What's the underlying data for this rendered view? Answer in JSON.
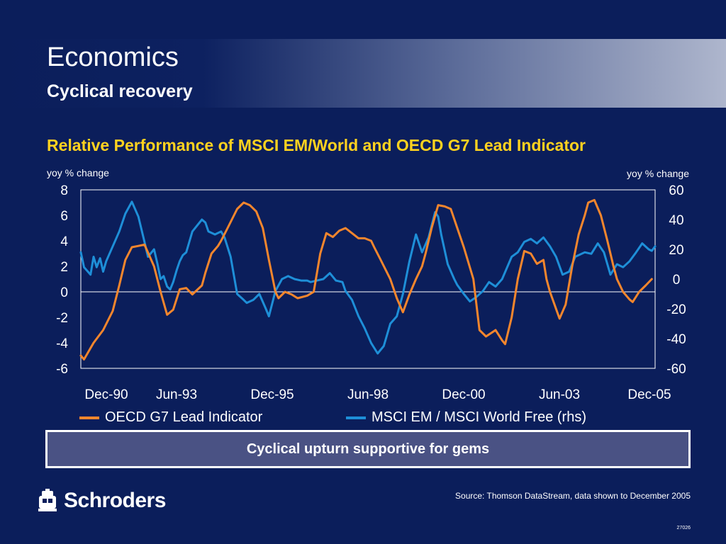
{
  "header": {
    "title": "Economics",
    "subtitle": "Cyclical recovery"
  },
  "colors": {
    "background": "#0b1e5b",
    "title_yellow": "#ffd21f",
    "oecd_orange": "#f4862d",
    "msci_blue": "#1e8fd8",
    "callout_fill": "#4a5284"
  },
  "chart_data": {
    "type": "line",
    "title": "Relative Performance of MSCI EM/World and OECD G7 Lead Indicator",
    "ylabel_left": "yoy % change",
    "ylabel_right": "yoy % change",
    "ylim_left": [
      -6,
      8
    ],
    "ylim_right": [
      -60,
      60
    ],
    "yticks_left": [
      "8",
      "6",
      "4",
      "2",
      "0",
      "-2",
      "-4",
      "-6"
    ],
    "yticks_right": [
      "60",
      "40",
      "20",
      "0",
      "-20",
      "-40",
      "-60"
    ],
    "xlim": [
      1990.917,
      2005.917
    ],
    "xticks": [
      {
        "label": "Dec-90",
        "x": 1990.917
      },
      {
        "label": "Jun-93",
        "x": 1993.417
      },
      {
        "label": "Dec-95",
        "x": 1995.917
      },
      {
        "label": "Jun-98",
        "x": 1998.417
      },
      {
        "label": "Dec-00",
        "x": 2000.917
      },
      {
        "label": "Jun-03",
        "x": 2003.417
      },
      {
        "label": "Dec-05",
        "x": 2005.917
      }
    ],
    "zero_line": true,
    "legend_position": "bottom",
    "series": [
      {
        "name": "OECD G7 Lead Indicator",
        "axis": "left",
        "color": "#f4862d",
        "x": [
          1990.917,
          1991.0,
          1991.25,
          1991.5,
          1991.75,
          1991.92,
          1992.08,
          1992.25,
          1992.42,
          1992.58,
          1992.83,
          1993.0,
          1993.17,
          1993.33,
          1993.5,
          1993.67,
          1993.83,
          1994.08,
          1994.17,
          1994.33,
          1994.5,
          1994.58,
          1994.75,
          1995.0,
          1995.17,
          1995.33,
          1995.5,
          1995.67,
          1995.83,
          1996.0,
          1996.08,
          1996.25,
          1996.42,
          1996.58,
          1996.83,
          1997.0,
          1997.17,
          1997.33,
          1997.5,
          1997.67,
          1997.83,
          1998.0,
          1998.17,
          1998.33,
          1998.5,
          1998.58,
          1998.75,
          1999.0,
          1999.17,
          1999.33,
          1999.5,
          1999.67,
          1999.83,
          1999.92,
          2000.08,
          2000.25,
          2000.42,
          2000.58,
          2000.75,
          2000.92,
          2001.17,
          2001.33,
          2001.5,
          2001.75,
          2001.92,
          2002.0,
          2002.17,
          2002.33,
          2002.5,
          2002.67,
          2002.83,
          2003.0,
          2003.08,
          2003.17,
          2003.42,
          2003.58,
          2003.75,
          2003.92,
          2004.08,
          2004.17,
          2004.33,
          2004.5,
          2004.67,
          2004.83,
          2004.92,
          2005.08,
          2005.25,
          2005.33,
          2005.5,
          2005.67,
          2005.83
        ],
        "values": [
          -5.0,
          -5.3,
          -4.0,
          -3.0,
          -1.5,
          0.5,
          2.5,
          3.5,
          3.6,
          3.7,
          2.0,
          0.0,
          -1.8,
          -1.4,
          0.2,
          0.3,
          -0.2,
          0.5,
          1.5,
          3.0,
          3.6,
          4.0,
          5.0,
          6.5,
          7.0,
          6.8,
          6.3,
          5.0,
          2.5,
          0.0,
          -0.5,
          0.0,
          -0.2,
          -0.5,
          -0.3,
          0.0,
          3.0,
          4.6,
          4.3,
          4.8,
          5.0,
          4.6,
          4.2,
          4.2,
          4.0,
          3.5,
          2.5,
          1.0,
          -0.5,
          -1.6,
          -0.2,
          1.0,
          2.0,
          3.0,
          5.0,
          6.8,
          6.7,
          6.5,
          5.0,
          3.5,
          1.0,
          -3.0,
          -3.5,
          -3.0,
          -3.8,
          -4.1,
          -2.0,
          1.0,
          3.2,
          3.0,
          2.2,
          2.5,
          1.0,
          0.0,
          -2.1,
          -1.0,
          2.0,
          4.5,
          6.0,
          7.0,
          7.2,
          6.0,
          4.0,
          2.0,
          1.0,
          0.0,
          -0.6,
          -0.8,
          0.0,
          0.5,
          1.0
        ]
      },
      {
        "name": "MSCI EM / MSCI World Free (rhs)",
        "axis": "right",
        "color": "#1e8fd8",
        "x": [
          1990.917,
          1991.0,
          1991.17,
          1991.25,
          1991.33,
          1991.42,
          1991.5,
          1991.58,
          1991.75,
          1991.92,
          1992.08,
          1992.25,
          1992.42,
          1992.58,
          1992.67,
          1992.83,
          1992.92,
          1993.0,
          1993.08,
          1993.17,
          1993.25,
          1993.33,
          1993.42,
          1993.5,
          1993.58,
          1993.67,
          1993.75,
          1993.83,
          1994.08,
          1994.17,
          1994.25,
          1994.42,
          1994.58,
          1994.67,
          1994.83,
          1995.0,
          1995.17,
          1995.25,
          1995.42,
          1995.58,
          1995.75,
          1995.83,
          1996.0,
          1996.17,
          1996.33,
          1996.5,
          1996.67,
          1996.83,
          1996.92,
          1997.08,
          1997.25,
          1997.42,
          1997.58,
          1997.75,
          1997.83,
          1998.0,
          1998.17,
          1998.33,
          1998.5,
          1998.67,
          1998.83,
          1999.0,
          1999.17,
          1999.33,
          1999.5,
          1999.67,
          1999.83,
          2000.0,
          2000.17,
          2000.25,
          2000.33,
          2000.5,
          2000.67,
          2000.75,
          2000.92,
          2001.08,
          2001.25,
          2001.42,
          2001.58,
          2001.75,
          2001.92,
          2002.17,
          2002.33,
          2002.5,
          2002.67,
          2002.83,
          2003.0,
          2003.17,
          2003.33,
          2003.5,
          2003.67,
          2003.83,
          2004.08,
          2004.25,
          2004.42,
          2004.58,
          2004.75,
          2004.92,
          2005.08,
          2005.25,
          2005.42,
          2005.58,
          2005.75,
          2005.83,
          2005.917
        ],
        "values": [
          18.0,
          8.0,
          3.0,
          15.0,
          8.0,
          14.0,
          5.0,
          12.0,
          22.0,
          32.0,
          44.0,
          52.0,
          42.0,
          25.0,
          15.0,
          20.0,
          10.0,
          0.0,
          2.0,
          -5.0,
          -7.0,
          -2.0,
          6.0,
          12.0,
          16.0,
          18.0,
          25.0,
          32.0,
          40.0,
          38.0,
          32.0,
          30.0,
          32.0,
          28.0,
          15.0,
          -10.0,
          -14.0,
          -16.0,
          -14.0,
          -10.0,
          -20.0,
          -25.0,
          -8.0,
          0.0,
          2.0,
          0.0,
          -1.0,
          -1.0,
          -2.0,
          -1.0,
          0.0,
          4.0,
          -1.0,
          -2.0,
          -8.0,
          -14.0,
          -25.0,
          -33.0,
          -43.0,
          -50.0,
          -45.0,
          -30.0,
          -25.0,
          -10.0,
          12.0,
          30.0,
          18.0,
          28.0,
          45.0,
          42.0,
          30.0,
          10.0,
          0.0,
          -4.0,
          -10.0,
          -15.0,
          -12.0,
          -8.0,
          -2.0,
          -5.0,
          0.0,
          15.0,
          18.0,
          25.0,
          27.0,
          24.0,
          28.0,
          22.0,
          15.0,
          3.0,
          5.0,
          15.0,
          18.0,
          17.0,
          24.0,
          18.0,
          3.0,
          10.0,
          8.0,
          12.0,
          18.0,
          24.0,
          20.0,
          19.0,
          22.0
        ]
      }
    ]
  },
  "callout": {
    "text": "Cyclical upturn supportive for gems"
  },
  "footer": {
    "logo_text": "Schroders",
    "source": "Source: Thomson DataStream, data shown to December 2005",
    "ref": "27026"
  },
  "icons": {
    "logo_emblem": "crest-icon"
  }
}
